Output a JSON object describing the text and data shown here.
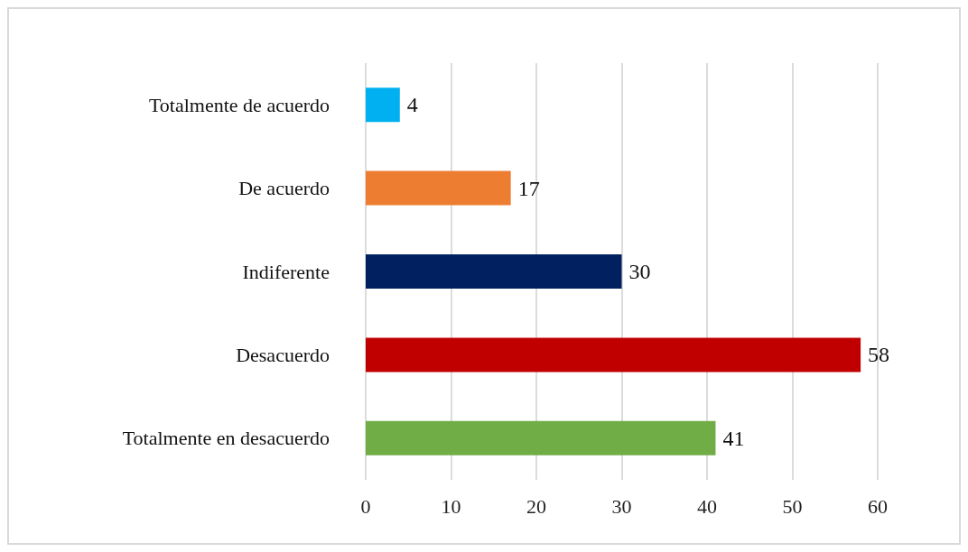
{
  "chart_data": {
    "type": "bar",
    "orientation": "horizontal",
    "categories": [
      "Totalmente de acuerdo",
      "De acuerdo",
      "Indiferente",
      "Desacuerdo",
      "Totalmente en desacuerdo"
    ],
    "values": [
      4,
      17,
      30,
      58,
      41
    ],
    "colors": [
      "#00b0f0",
      "#ed7d31",
      "#002060",
      "#c00000",
      "#70ad47"
    ],
    "xlim": [
      0,
      60
    ],
    "xticks": [
      0,
      10,
      20,
      30,
      40,
      50,
      60
    ],
    "grid": "x",
    "data_labels": true
  }
}
